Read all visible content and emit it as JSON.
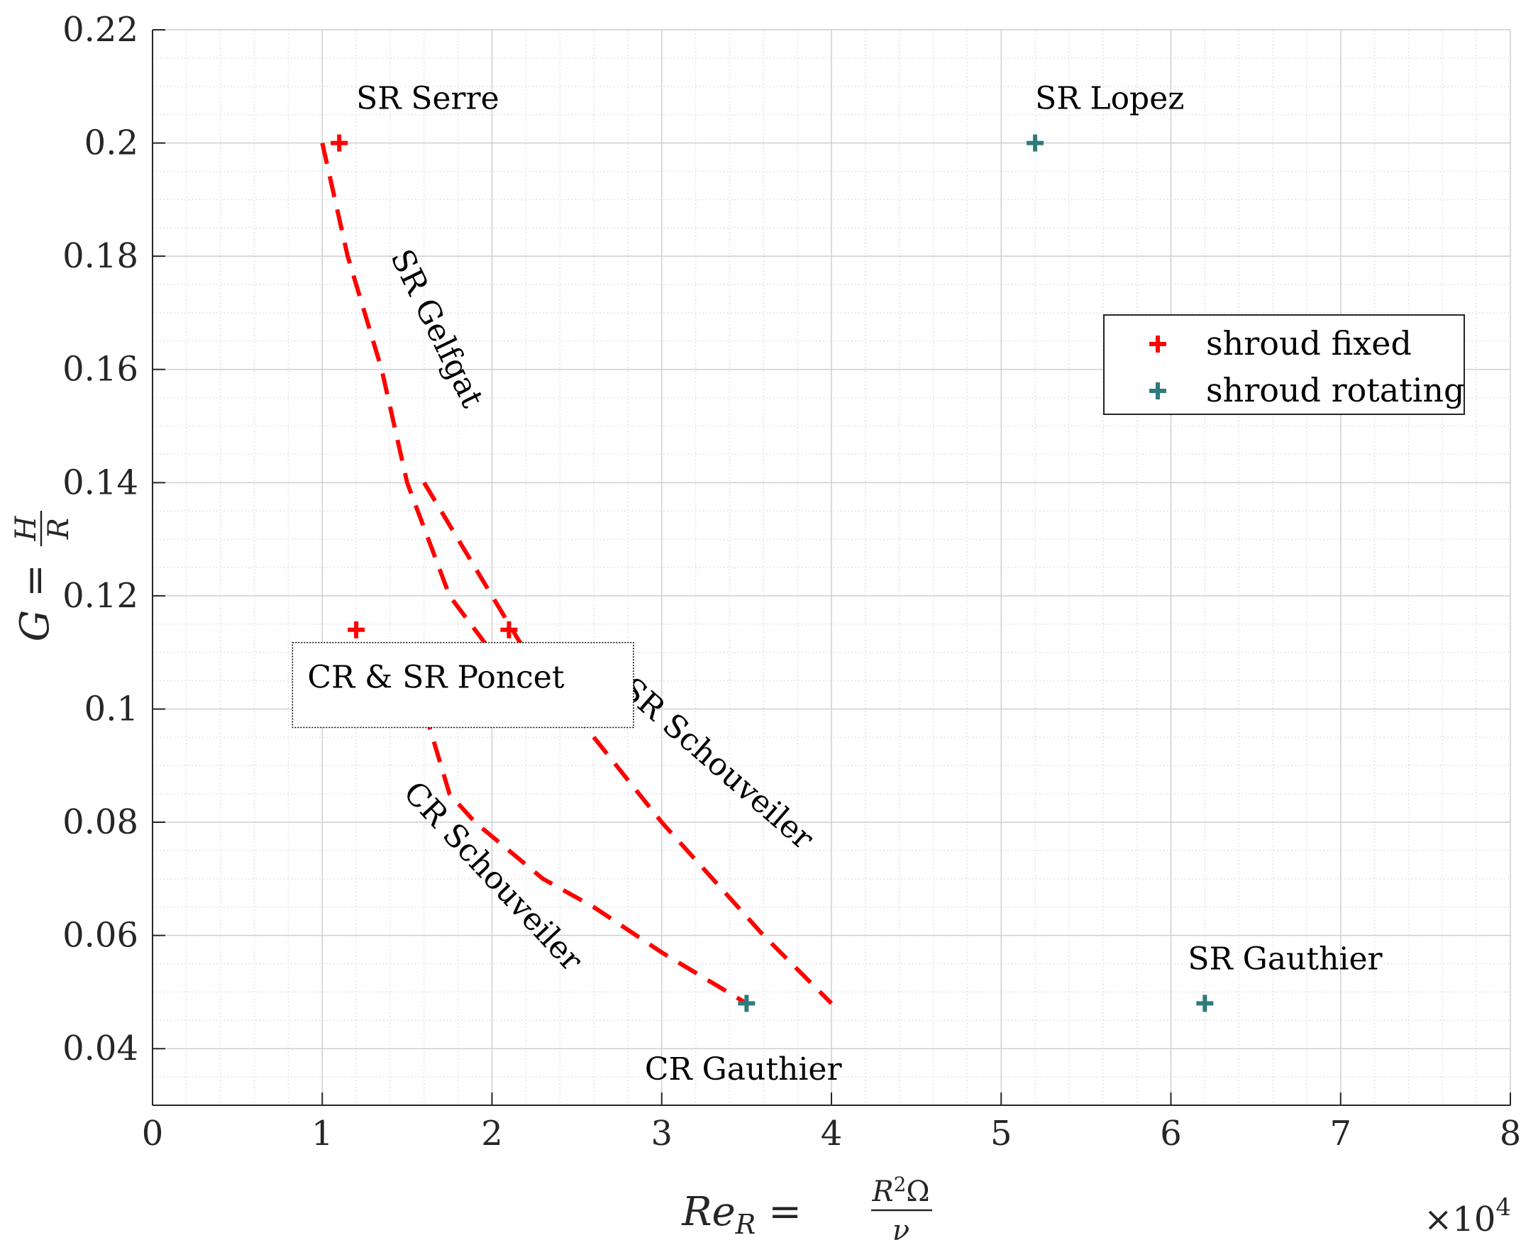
{
  "chart_data": {
    "type": "scatter",
    "xlabel": {
      "lhs": "Re",
      "lhs_sub": "R",
      "num_base": "R",
      "num_sup": "2",
      "num_rest": "Ω",
      "den": "ν"
    },
    "ylabel": {
      "lhs": "G",
      "num": "H",
      "den": "R"
    },
    "x_exponent": {
      "prefix": "×10",
      "sup": "4"
    },
    "xlim": [
      0,
      80000
    ],
    "ylim": [
      0.03,
      0.22
    ],
    "xticks": [
      0,
      10000,
      20000,
      30000,
      40000,
      50000,
      60000,
      70000,
      80000
    ],
    "xtick_labels": [
      "0",
      "1",
      "2",
      "3",
      "4",
      "5",
      "6",
      "7",
      "8"
    ],
    "yticks": [
      0.04,
      0.06,
      0.08,
      0.1,
      0.12,
      0.14,
      0.16,
      0.18,
      0.2,
      0.22
    ],
    "ytick_labels": [
      "0.04",
      "0.06",
      "0.08",
      "0.1",
      "0.12",
      "0.14",
      "0.16",
      "0.18",
      "0.2",
      "0.22"
    ],
    "grid": true,
    "minor_grid": true,
    "legend_position": "right",
    "series": [
      {
        "name": "shroud fixed",
        "color": "#ff0000",
        "marker": "plus",
        "points": [
          [
            11000,
            0.2
          ],
          [
            12000,
            0.114
          ],
          [
            21000,
            0.114
          ]
        ]
      },
      {
        "name": "shroud rotating",
        "color": "#2e7b7b",
        "marker": "plus",
        "points": [
          [
            52000,
            0.2
          ],
          [
            35000,
            0.048
          ],
          [
            62000,
            0.048
          ]
        ]
      }
    ],
    "curves": [
      {
        "color": "#ff0000",
        "style": "dashed",
        "points": [
          [
            10000,
            0.2
          ],
          [
            11500,
            0.18
          ],
          [
            13500,
            0.16
          ],
          [
            15000,
            0.14
          ],
          [
            17500,
            0.12
          ],
          [
            20000,
            0.11
          ],
          [
            22000,
            0.1
          ]
        ]
      },
      {
        "color": "#ff0000",
        "style": "dashed",
        "points": [
          [
            16000,
            0.14
          ],
          [
            19000,
            0.125
          ],
          [
            22000,
            0.11
          ],
          [
            26000,
            0.095
          ],
          [
            30000,
            0.08
          ],
          [
            33000,
            0.07
          ],
          [
            36000,
            0.06
          ],
          [
            40000,
            0.048
          ]
        ]
      },
      {
        "color": "#ff0000",
        "style": "dashed",
        "points": [
          [
            16000,
            0.1
          ],
          [
            17500,
            0.085
          ],
          [
            19000,
            0.08
          ],
          [
            21000,
            0.075
          ],
          [
            23000,
            0.07
          ],
          [
            26000,
            0.065
          ],
          [
            30000,
            0.057
          ],
          [
            35000,
            0.048
          ]
        ]
      }
    ],
    "annotations": [
      {
        "text": "SR Serre",
        "x": 12000,
        "y": 0.206,
        "rotate": 0,
        "anchor": "start"
      },
      {
        "text": "SR Lopez",
        "x": 52000,
        "y": 0.206,
        "rotate": 0,
        "anchor": "start"
      },
      {
        "text": "SR Gelfgat",
        "x": 14000,
        "y": 0.18,
        "rotate": 64,
        "anchor": "start"
      },
      {
        "text": "SR Schouveiler",
        "x": 27500,
        "y": 0.103,
        "rotate": 41,
        "anchor": "start"
      },
      {
        "text": "CR Schouveiler",
        "x": 14700,
        "y": 0.085,
        "rotate": 47,
        "anchor": "start"
      },
      {
        "text": "CR Gauthier",
        "x": 29000,
        "y": 0.0345,
        "rotate": 0,
        "anchor": "start"
      },
      {
        "text": "SR Gauthier",
        "x": 61000,
        "y": 0.054,
        "rotate": 0,
        "anchor": "start"
      }
    ],
    "boxed_annotation": {
      "text": "CR & SR Poncet",
      "x0": 9000,
      "x1": 27500,
      "y0": 0.114,
      "y1": 0.1025
    }
  }
}
